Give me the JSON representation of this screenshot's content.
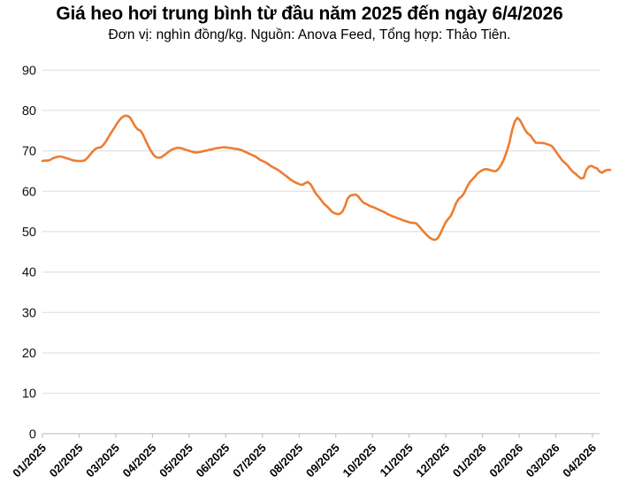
{
  "header": {
    "title": "Giá heo hơi trung bình từ đầu năm 2025 đến ngày 6/4/2026",
    "subtitle": "Đơn vị: nghìn đồng/kg. Nguồn: Anova Feed, Tổng hợp: Thảo Tiên."
  },
  "colors": {
    "accent": "#ED7D31",
    "grid": "#DBDBDB",
    "axis": "#C2C2C2",
    "text": "#000000",
    "background": "#FFFFFF"
  },
  "chart_data": {
    "type": "line",
    "title": "Giá heo hơi trung bình từ đầu năm 2025 đến ngày 6/4/2026",
    "unit": "nghìn đồng/kg",
    "source": "Anova Feed",
    "compiled_by": "Thảo Tiên",
    "grid": true,
    "legend_position": "none",
    "ylim": [
      0,
      90
    ],
    "y_ticks": [
      0,
      10,
      20,
      30,
      40,
      50,
      60,
      70,
      80,
      90
    ],
    "x_tick_labels": [
      "01/2025",
      "02/2025",
      "03/2025",
      "04/2025",
      "05/2025",
      "06/2025",
      "07/2025",
      "08/2025",
      "09/2025",
      "10/2025",
      "11/2025",
      "12/2025",
      "01/2026",
      "02/2026",
      "03/2026",
      "04/2026"
    ],
    "series": [
      {
        "name": "Giá heo hơi trung bình",
        "color": "#ED7D31",
        "x_start_month": 0,
        "x_step_month": 0.07235,
        "values": [
          67.5,
          67.6,
          67.6,
          67.8,
          68.2,
          68.4,
          68.6,
          68.6,
          68.4,
          68.2,
          68.0,
          67.8,
          67.6,
          67.5,
          67.5,
          67.5,
          67.7,
          68.3,
          69.1,
          69.9,
          70.5,
          70.8,
          70.9,
          71.5,
          72.4,
          73.5,
          74.6,
          75.6,
          76.7,
          77.6,
          78.3,
          78.7,
          78.7,
          78.3,
          77.2,
          76.0,
          75.3,
          75.0,
          73.9,
          72.4,
          71.1,
          69.9,
          68.9,
          68.4,
          68.3,
          68.5,
          69.0,
          69.5,
          70.0,
          70.4,
          70.6,
          70.8,
          70.7,
          70.5,
          70.3,
          70.1,
          69.9,
          69.7,
          69.6,
          69.7,
          69.8,
          70.0,
          70.1,
          70.3,
          70.4,
          70.6,
          70.7,
          70.8,
          70.9,
          70.9,
          70.8,
          70.7,
          70.6,
          70.5,
          70.4,
          70.2,
          69.9,
          69.6,
          69.3,
          69.0,
          68.7,
          68.3,
          67.8,
          67.5,
          67.2,
          66.8,
          66.3,
          65.9,
          65.6,
          65.2,
          64.7,
          64.2,
          63.7,
          63.2,
          62.7,
          62.3,
          62.0,
          61.7,
          61.6,
          62.0,
          62.3,
          61.8,
          60.7,
          59.5,
          58.7,
          57.9,
          57.0,
          56.4,
          55.8,
          55.0,
          54.6,
          54.4,
          54.4,
          54.9,
          56.2,
          58.2,
          58.9,
          59.1,
          59.2,
          58.8,
          57.9,
          57.2,
          56.9,
          56.5,
          56.2,
          56.0,
          55.7,
          55.4,
          55.1,
          54.8,
          54.4,
          54.1,
          53.8,
          53.6,
          53.3,
          53.1,
          52.8,
          52.6,
          52.4,
          52.2,
          52.2,
          52.0,
          51.3,
          50.5,
          49.8,
          49.1,
          48.5,
          48.1,
          48.0,
          48.4,
          49.5,
          51.0,
          52.3,
          53.2,
          54.0,
          55.5,
          57.2,
          58.2,
          58.7,
          59.6,
          61.0,
          62.2,
          62.9,
          63.6,
          64.4,
          64.9,
          65.3,
          65.5,
          65.4,
          65.2,
          65.0,
          65.0,
          65.6,
          66.6,
          68.0,
          69.8,
          72.0,
          75.0,
          77.2,
          78.2,
          77.6,
          76.4,
          75.1,
          74.3,
          73.8,
          72.8,
          72.0,
          72.0,
          72.0,
          71.9,
          71.7,
          71.5,
          71.2,
          70.4,
          69.4,
          68.5,
          67.6,
          67.0,
          66.4,
          65.5,
          64.8,
          64.3,
          63.7,
          63.2,
          63.3,
          65.3,
          66.1,
          66.3,
          65.9,
          65.7,
          64.9,
          64.6,
          65.1,
          65.3,
          65.3
        ]
      }
    ]
  }
}
